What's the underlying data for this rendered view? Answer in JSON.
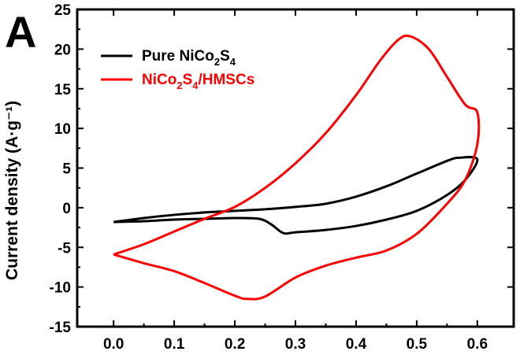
{
  "chart_data": {
    "type": "line",
    "panel_label": "A",
    "title": "",
    "xlabel": "",
    "ylabel": "Current density (A·g⁻¹)",
    "xlim": [
      -0.06,
      0.66
    ],
    "ylim": [
      -15,
      25
    ],
    "xticks": [
      0.0,
      0.1,
      0.2,
      0.3,
      0.4,
      0.5,
      0.6
    ],
    "xtick_labels": [
      "0.0",
      "0.1",
      "0.2",
      "0.3",
      "0.4",
      "0.5",
      "0.6"
    ],
    "yticks": [
      -15,
      -10,
      -5,
      0,
      5,
      10,
      15,
      20,
      25
    ],
    "ytick_labels": [
      "-15",
      "-10",
      "-5",
      "0",
      "5",
      "10",
      "15",
      "20",
      "25"
    ],
    "grid": false,
    "legend_position": "top-left",
    "series": [
      {
        "name": "Pure NiCo2S4",
        "color": "#000000",
        "x": [
          0.0,
          0.05,
          0.1,
          0.15,
          0.2,
          0.25,
          0.3,
          0.35,
          0.4,
          0.45,
          0.5,
          0.55,
          0.57,
          0.6,
          0.58,
          0.55,
          0.5,
          0.45,
          0.4,
          0.35,
          0.3,
          0.28,
          0.26,
          0.24,
          0.2,
          0.15,
          0.1,
          0.05,
          0.0
        ],
        "y": [
          -1.8,
          -1.3,
          -0.9,
          -0.6,
          -0.4,
          -0.2,
          0.1,
          0.5,
          1.4,
          2.7,
          4.3,
          5.9,
          6.3,
          6.1,
          3.5,
          1.6,
          -0.4,
          -1.5,
          -2.3,
          -2.8,
          -3.1,
          -3.2,
          -2.1,
          -1.4,
          -1.3,
          -1.4,
          -1.5,
          -1.7,
          -1.8
        ]
      },
      {
        "name": "NiCo2S4/HMSCs",
        "color": "#ff0000",
        "x": [
          0.0,
          0.05,
          0.1,
          0.15,
          0.2,
          0.25,
          0.3,
          0.35,
          0.4,
          0.44,
          0.47,
          0.49,
          0.52,
          0.55,
          0.58,
          0.6,
          0.6,
          0.58,
          0.55,
          0.5,
          0.45,
          0.4,
          0.35,
          0.3,
          0.25,
          0.22,
          0.2,
          0.15,
          0.1,
          0.05,
          0.0
        ],
        "y": [
          -5.9,
          -4.6,
          -3.0,
          -1.4,
          0.1,
          2.5,
          5.6,
          9.4,
          14.2,
          18.6,
          21.2,
          21.6,
          20.0,
          16.5,
          13.0,
          12.0,
          8.0,
          3.5,
          0.5,
          -3.3,
          -5.4,
          -6.3,
          -7.3,
          -8.8,
          -11.2,
          -11.5,
          -11.1,
          -9.5,
          -8.0,
          -7.0,
          -5.9
        ]
      }
    ]
  }
}
